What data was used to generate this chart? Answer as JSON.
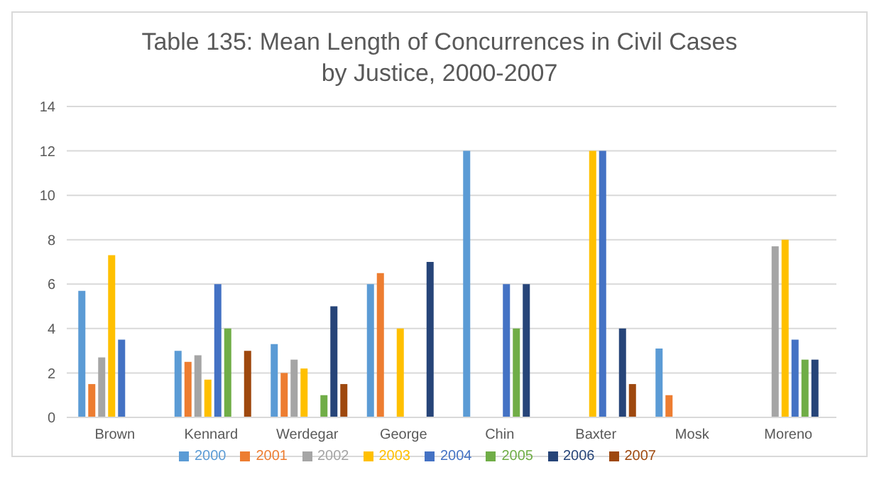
{
  "chart_data": {
    "type": "bar",
    "title": "Table 135: Mean Length of Concurrences in Civil Cases by Justice, 2000-2007",
    "categories": [
      "Brown",
      "Kennard",
      "Werdegar",
      "George",
      "Chin",
      "Baxter",
      "Mosk",
      "Moreno"
    ],
    "series": [
      {
        "name": "2000",
        "color": "#5b9bd5",
        "values": [
          5.7,
          3,
          3.3,
          6,
          12,
          null,
          3.1,
          null
        ]
      },
      {
        "name": "2001",
        "color": "#ed7d31",
        "values": [
          1.5,
          2.5,
          2,
          6.5,
          null,
          null,
          1,
          null
        ]
      },
      {
        "name": "2002",
        "color": "#a5a5a5",
        "values": [
          2.7,
          2.8,
          2.6,
          null,
          null,
          null,
          null,
          7.7
        ]
      },
      {
        "name": "2003",
        "color": "#ffc000",
        "values": [
          7.3,
          1.7,
          2.2,
          4,
          null,
          12,
          null,
          8
        ]
      },
      {
        "name": "2004",
        "color": "#4472c4",
        "values": [
          3.5,
          6,
          null,
          null,
          6,
          12,
          null,
          3.5
        ]
      },
      {
        "name": "2005",
        "color": "#70ad47",
        "values": [
          null,
          4,
          1,
          null,
          4,
          null,
          null,
          2.6
        ]
      },
      {
        "name": "2006",
        "color": "#264478",
        "values": [
          null,
          null,
          5,
          7,
          6,
          4,
          null,
          2.6
        ]
      },
      {
        "name": "2007",
        "color": "#9e480e",
        "values": [
          null,
          3,
          1.5,
          null,
          null,
          1.5,
          null,
          null
        ]
      }
    ],
    "ylim": [
      0,
      14
    ],
    "yticks": [
      0,
      2,
      4,
      6,
      8,
      10,
      12,
      14
    ],
    "grid": "y",
    "legend": "bottom"
  }
}
